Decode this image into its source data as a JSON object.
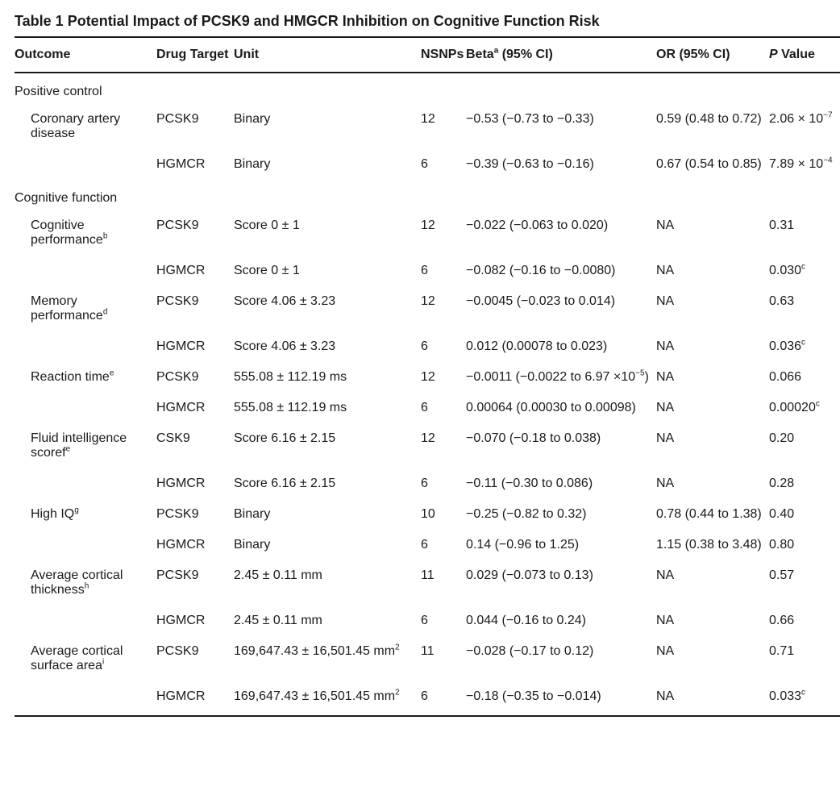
{
  "title": "Table 1 Potential Impact of PCSK9 and HMGCR Inhibition on Cognitive Function Risk",
  "columns": {
    "outcome": "Outcome",
    "target": "Drug Target",
    "unit": "Unit",
    "nsnps": "NSNPs",
    "beta": "Beta",
    "beta_sup": "a",
    "beta_suffix": " (95% CI)",
    "or": "OR (95% CI)",
    "p": {
      "pre": "P",
      "post": " Value"
    }
  },
  "sections": [
    {
      "label": "Positive control",
      "rows": [
        {
          "outcome": "Coronary artery disease",
          "outcome_sup": "",
          "target": "PCSK9",
          "unit": "Binary",
          "nsnps": "12",
          "beta": "−0.53 (−0.73 to −0.33)",
          "or": "0.59 (0.48 to 0.72)",
          "p_pre": "2.06 × 10",
          "p_sup": "−7"
        },
        {
          "outcome": "",
          "outcome_sup": "",
          "target": "HGMCR",
          "unit": "Binary",
          "nsnps": "6",
          "beta": "−0.39 (−0.63 to −0.16)",
          "or": "0.67 (0.54 to 0.85)",
          "p_pre": "7.89 × 10",
          "p_sup": "−4"
        }
      ]
    },
    {
      "label": "Cognitive function",
      "rows": [
        {
          "outcome": "Cognitive performance",
          "outcome_sup": "b",
          "target": "PCSK9",
          "unit": "Score 0 ± 1",
          "nsnps": "12",
          "beta": "−0.022 (−0.063 to 0.020)",
          "or": "NA",
          "p_pre": "0.31",
          "p_sup": ""
        },
        {
          "outcome": "",
          "outcome_sup": "",
          "target": "HGMCR",
          "unit": "Score 0 ± 1",
          "nsnps": "6",
          "beta": "−0.082 (−0.16 to −0.0080)",
          "or": "NA",
          "p_pre": "0.030",
          "p_sup": "c"
        },
        {
          "outcome": "Memory performance",
          "outcome_sup": "d",
          "target": "PCSK9",
          "unit": "Score 4.06 ± 3.23",
          "nsnps": "12",
          "beta": "−0.0045 (−0.023 to 0.014)",
          "or": "NA",
          "p_pre": "0.63",
          "p_sup": ""
        },
        {
          "outcome": "",
          "outcome_sup": "",
          "target": "HGMCR",
          "unit": "Score 4.06 ± 3.23",
          "nsnps": "6",
          "beta": "0.012 (0.00078 to 0.023)",
          "or": "NA",
          "p_pre": "0.036",
          "p_sup": "c"
        },
        {
          "outcome": "Reaction time",
          "outcome_sup": "e",
          "target": "PCSK9",
          "unit": "555.08 ± 112.19 ms",
          "nsnps": "12",
          "beta_pre": "−0.0011 (−0.0022 to 6.97 ×10",
          "beta_sup": "−5",
          "beta_post": ")",
          "or": "NA",
          "p_pre": "0.066",
          "p_sup": ""
        },
        {
          "outcome": "",
          "outcome_sup": "",
          "target": "HGMCR",
          "unit": "555.08 ± 112.19 ms",
          "nsnps": "6",
          "beta": "0.00064 (0.00030 to 0.00098)",
          "or": "NA",
          "p_pre": "0.00020",
          "p_sup": "c"
        },
        {
          "outcome": "Fluid intelligence scoref",
          "outcome_sup": "e",
          "target": "CSK9",
          "unit": "Score 6.16 ± 2.15",
          "nsnps": "12",
          "beta": "−0.070 (−0.18 to 0.038)",
          "or": "NA",
          "p_pre": "0.20",
          "p_sup": ""
        },
        {
          "outcome": "",
          "outcome_sup": "",
          "target": "HGMCR",
          "unit": "Score 6.16 ± 2.15",
          "nsnps": "6",
          "beta": "−0.11 (−0.30 to 0.086)",
          "or": "NA",
          "p_pre": "0.28",
          "p_sup": ""
        },
        {
          "outcome": "High IQ",
          "outcome_sup": "g",
          "target": "PCSK9",
          "unit": "Binary",
          "nsnps": "10",
          "beta": "−0.25 (−0.82 to 0.32)",
          "or": "0.78 (0.44 to 1.38)",
          "p_pre": "0.40",
          "p_sup": ""
        },
        {
          "outcome": "",
          "outcome_sup": "",
          "target": "HGMCR",
          "unit": "Binary",
          "nsnps": "6",
          "beta": "0.14 (−0.96 to 1.25)",
          "or": "1.15 (0.38 to 3.48)",
          "p_pre": "0.80",
          "p_sup": ""
        },
        {
          "outcome": "Average cortical thickness",
          "outcome_sup": "h",
          "target": "PCSK9",
          "unit": "2.45 ± 0.11 mm",
          "nsnps": "11",
          "beta": "0.029 (−0.073 to 0.13)",
          "or": "NA",
          "p_pre": "0.57",
          "p_sup": ""
        },
        {
          "outcome": "",
          "outcome_sup": "",
          "target": "HGMCR",
          "unit": "2.45 ± 0.11 mm",
          "nsnps": "6",
          "beta": "0.044 (−0.16 to 0.24)",
          "or": "NA",
          "p_pre": "0.66",
          "p_sup": ""
        },
        {
          "outcome": "Average cortical surface area",
          "outcome_sup": "i",
          "target": "PCSK9",
          "unit_pre": "169,647.43 ± 16,501.45 mm",
          "unit_sup": "2",
          "nsnps": "11",
          "beta": "−0.028 (−0.17 to 0.12)",
          "or": "NA",
          "p_pre": "0.71",
          "p_sup": ""
        },
        {
          "outcome": "",
          "outcome_sup": "",
          "target": "HGMCR",
          "unit_pre": "169,647.43 ± 16,501.45 mm",
          "unit_sup": "2",
          "nsnps": "6",
          "beta": "−0.18 (−0.35 to −0.014)",
          "or": "NA",
          "p_pre": "0.033",
          "p_sup": "c"
        }
      ]
    }
  ]
}
